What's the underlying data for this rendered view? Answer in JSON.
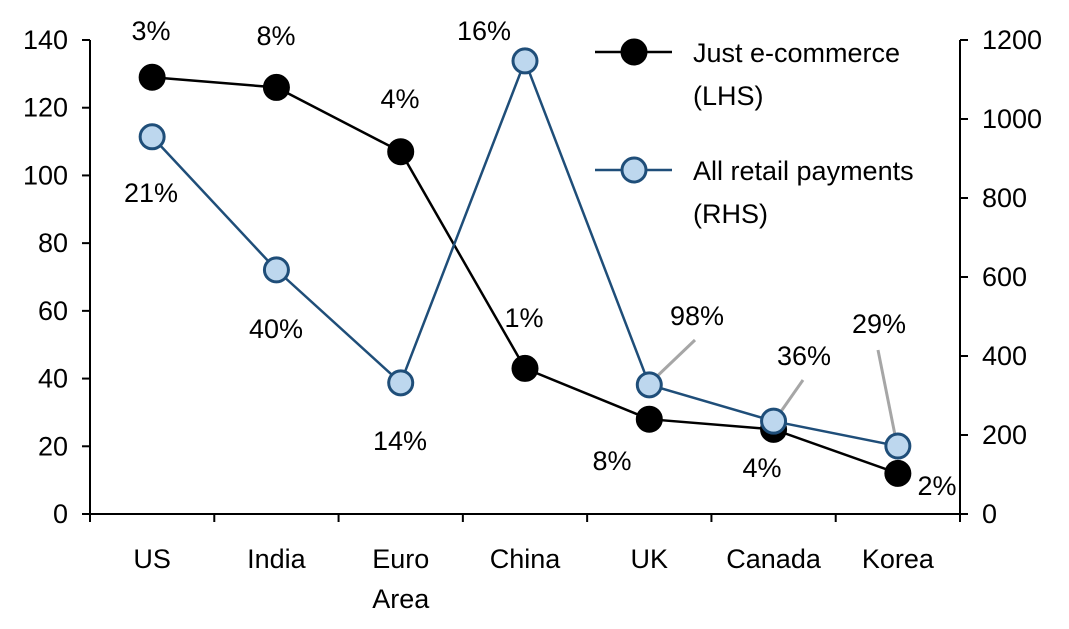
{
  "chart_data": {
    "type": "line",
    "categories": [
      [
        "US"
      ],
      [
        "India"
      ],
      [
        "Euro",
        "Area"
      ],
      [
        "China"
      ],
      [
        "UK"
      ],
      [
        "Canada"
      ],
      [
        "Korea"
      ]
    ],
    "y_left": {
      "range": [
        0,
        140
      ],
      "ticks": [
        0,
        20,
        40,
        60,
        80,
        100,
        120,
        140
      ]
    },
    "y_right": {
      "range": [
        0,
        1200
      ],
      "ticks": [
        0,
        200,
        400,
        600,
        800,
        1000,
        1200
      ]
    },
    "grid": false,
    "legend_position": "top-right",
    "series": [
      {
        "name": [
          "Just e-commerce",
          "(LHS)"
        ],
        "axis": "left",
        "color": "#000000",
        "marker_fill": "#000000",
        "values": [
          129,
          126,
          107,
          43,
          28,
          25,
          12
        ],
        "labels": [
          "3%",
          "8%",
          "4%",
          "1%",
          "8%",
          "4%",
          "2%"
        ]
      },
      {
        "name": [
          "All retail payments",
          "(RHS)"
        ],
        "axis": "right",
        "color": "#1f4e79",
        "marker_fill": "#bdd7ee",
        "values": [
          955,
          618,
          332,
          1147,
          327,
          235,
          172
        ],
        "labels": [
          "21%",
          "40%",
          "14%",
          "16%",
          "98%",
          "36%",
          "29%"
        ]
      }
    ]
  }
}
